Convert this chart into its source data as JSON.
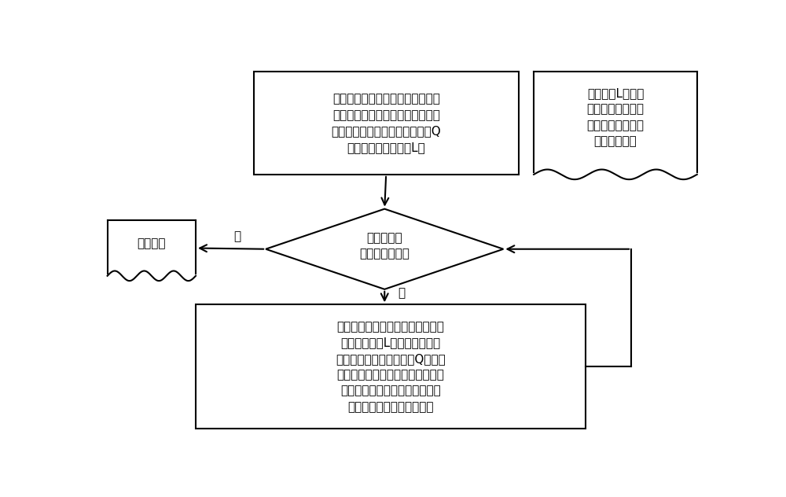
{
  "bg_color": "#ffffff",
  "line_color": "#000000",
  "text_color": "#000000",
  "top_box_text": "将原有工件路径线段和刀具外侧路\n径组成的线段的端点按从左到右，\n从上到下的顺序存储到事件队列Q\n中。初始化状态队列L。",
  "note_box_text": "状态队列L中存储\n了当前与扫描线相\n交的所有线段，指\n定顺序存储。",
  "diamond_text": "事件队列中\n是否有事件点？",
  "no_box_text": "没有干涉",
  "bottom_box_text": "取出最小事件点，处理此事件点，\n更新状态队列L，如果有交点产\n生，将交点插入事件队列Q的适当\n位置。如果产生的交点的两个线段\n分别来自工件路径和刀具外侧路\n径，那么报告有全局干涉。",
  "no_label": "否",
  "yes_label": "是"
}
